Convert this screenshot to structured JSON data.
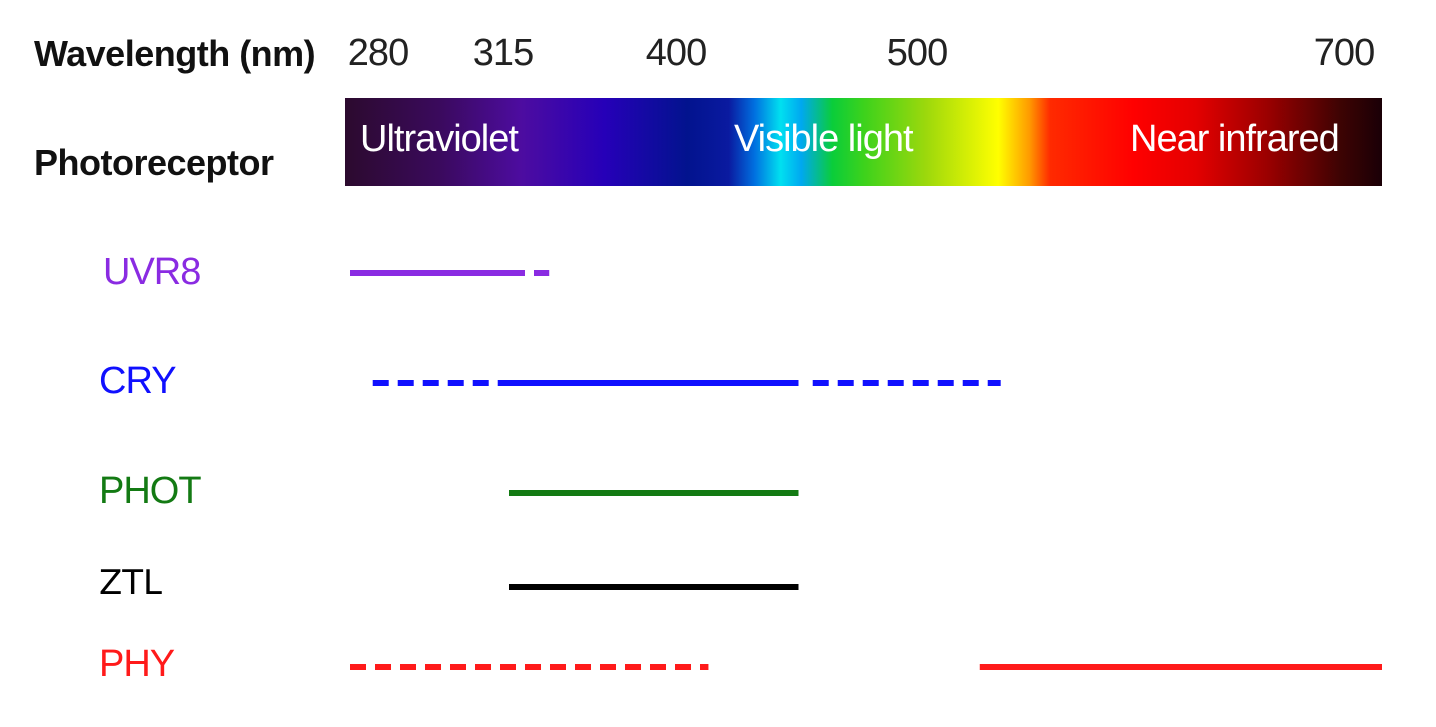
{
  "header": {
    "wavelength_label": "Wavelength (nm)",
    "photoreceptor_label": "Photoreceptor"
  },
  "ticks": [
    "280",
    "315",
    "400",
    "500",
    "700"
  ],
  "bands": [
    "Ultraviolet",
    "Visible light",
    "Near infrared"
  ],
  "receptors": [
    {
      "name": "UVR8",
      "color": "#8a2be2"
    },
    {
      "name": "CRY",
      "color": "#1010ff"
    },
    {
      "name": "PHOT",
      "color": "#137a13"
    },
    {
      "name": "ZTL",
      "color": "#000000"
    },
    {
      "name": "PHY",
      "color": "#ff1a1a"
    }
  ],
  "ranges": {
    "UVR8": {
      "solid": [
        [
          280,
          315
        ]
      ],
      "dashed": [
        [
          315,
          335
        ]
      ]
    },
    "CRY": {
      "solid": [
        [
          315,
          450
        ]
      ],
      "dashed": [
        [
          285,
          315
        ],
        [
          456,
          536
        ]
      ]
    },
    "PHOT": {
      "solid": [
        [
          315,
          450
        ]
      ],
      "dashed": []
    },
    "ZTL": {
      "solid": [
        [
          315,
          450
        ]
      ],
      "dashed": []
    },
    "PHY": {
      "solid": [
        [
          527,
          700
        ]
      ],
      "dashed": [
        [
          280,
          412
        ]
      ]
    }
  }
}
